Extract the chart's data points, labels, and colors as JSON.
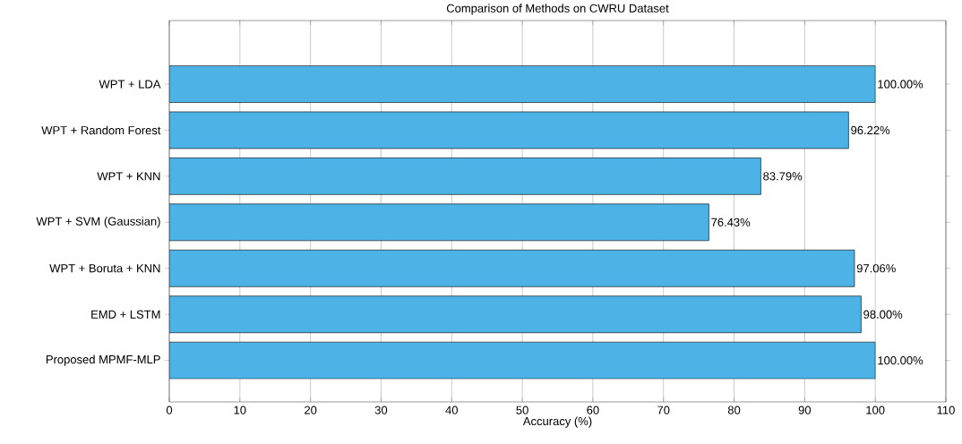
{
  "chart_data": {
    "type": "bar",
    "orientation": "horizontal",
    "title": "Comparison of Methods on CWRU Dataset",
    "xlabel": "Accuracy (%)",
    "categories": [
      "WPT + LDA",
      "WPT + Random Forest",
      "WPT + KNN",
      "WPT + SVM (Gaussian)",
      "WPT + Boruta + KNN",
      "EMD + LSTM",
      "Proposed MPMF-MLP"
    ],
    "values": [
      100,
      96.22,
      83.79,
      76.43,
      97.06,
      98,
      100
    ],
    "value_labels": [
      "100.00%",
      "96.22%",
      "83.79%",
      "76.43%",
      "97.06%",
      "98.00%",
      "100.00%"
    ],
    "color": "#4db3e6",
    "xlim": [
      0,
      110
    ],
    "xticks": [
      0,
      10,
      20,
      30,
      40,
      50,
      60,
      70,
      80,
      90,
      100,
      110
    ],
    "grid": "x"
  }
}
